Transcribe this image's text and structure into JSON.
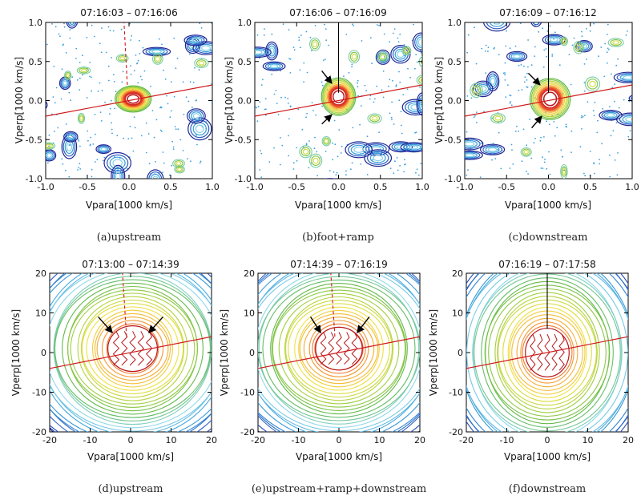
{
  "colors": {
    "contour_scale": [
      "#1a1a8a",
      "#2a58c0",
      "#39a0dc",
      "#8ed8ea",
      "#5cb84a",
      "#a8d140",
      "#f0e040",
      "#f5a030",
      "#e83a2a",
      "#b8171b"
    ],
    "field_line": "#d01818",
    "reference_line": "#000000",
    "arrow": "#000000",
    "frame": "#000000"
  },
  "chart_data": [
    {
      "type": "contour",
      "panel": "a",
      "title": "07:16:03 – 07:16:06",
      "caption": "(a)upstream",
      "xlabel": "Vpara[1000 km/s]",
      "ylabel": "Vperp[1000 km/s]",
      "xlim": [
        -1.0,
        1.0
      ],
      "ylim": [
        -1.0,
        1.0
      ],
      "xticks": [
        "-1.0",
        "-0.5",
        "0.0",
        "0.5",
        "1.0"
      ],
      "yticks": [
        "-1.0",
        "-0.5",
        "0.0",
        "0.5",
        "1.0"
      ],
      "field_line": {
        "x": [
          -1.0,
          1.0
        ],
        "y": [
          -0.2,
          0.2
        ]
      },
      "reference_line": {
        "x": [
          -0.02,
          -0.06
        ],
        "y": [
          0.2,
          1.0
        ],
        "style": "dashed"
      },
      "core": {
        "center": [
          0.05,
          0.02
        ],
        "r": [
          0.18,
          0.14
        ]
      },
      "arrows": []
    },
    {
      "type": "contour",
      "panel": "b",
      "title": "07:16:06 – 07:16:09",
      "caption": "(b)foot+ramp",
      "xlabel": "Vpara[1000 km/s]",
      "ylabel": "Vperp[1000 km/s]",
      "xlim": [
        -1.0,
        1.0
      ],
      "ylim": [
        -1.0,
        1.0
      ],
      "xticks": [
        "-1.0",
        "-0.5",
        "0.0",
        "0.5",
        "1.0"
      ],
      "yticks": [
        "-1.0",
        "-0.5",
        "0.0",
        "0.5",
        "1.0"
      ],
      "field_line": {
        "x": [
          -1.0,
          1.0
        ],
        "y": [
          -0.2,
          0.2
        ]
      },
      "reference_line": {
        "x": [
          0.0,
          0.0
        ],
        "y": [
          0.1,
          1.0
        ],
        "style": "solid"
      },
      "core": {
        "center": [
          0.0,
          0.05
        ],
        "r": [
          0.17,
          0.2
        ]
      },
      "arrows": [
        {
          "from": [
            -0.2,
            0.38
          ],
          "to": [
            -0.08,
            0.22
          ]
        },
        {
          "from": [
            -0.2,
            -0.3
          ],
          "to": [
            -0.08,
            -0.18
          ]
        }
      ]
    },
    {
      "type": "contour",
      "panel": "c",
      "title": "07:16:09 – 07:16:12",
      "caption": "(c)downstream",
      "xlabel": "Vpara[1000 km/s]",
      "ylabel": "Vperp[1000 km/s]",
      "xlim": [
        -1.0,
        1.0
      ],
      "ylim": [
        -1.0,
        1.0
      ],
      "xticks": [
        "-1.0",
        "-0.5",
        "0.0",
        "0.5",
        "1.0"
      ],
      "yticks": [
        "-1.0",
        "-0.5",
        "0.0",
        "0.5",
        "1.0"
      ],
      "field_line": {
        "x": [
          -1.0,
          1.0
        ],
        "y": [
          -0.2,
          0.2
        ]
      },
      "reference_line": {
        "x": [
          0.0,
          0.0
        ],
        "y": [
          0.1,
          1.0
        ],
        "style": "solid"
      },
      "core": {
        "center": [
          0.02,
          0.02
        ],
        "r": [
          0.2,
          0.22
        ]
      },
      "arrows": [
        {
          "from": [
            -0.24,
            0.35
          ],
          "to": [
            -0.1,
            0.2
          ]
        },
        {
          "from": [
            -0.2,
            -0.35
          ],
          "to": [
            -0.08,
            -0.2
          ]
        }
      ]
    },
    {
      "type": "contour",
      "panel": "d",
      "title": "07:13:00 – 07:14:39",
      "caption": "(d)upstream",
      "xlabel": "Vpara[1000 km/s]",
      "ylabel": "Vperp[1000 km/s]",
      "xlim": [
        -20,
        20
      ],
      "ylim": [
        -20,
        20
      ],
      "xticks": [
        "-20",
        "-10",
        "0",
        "10",
        "20"
      ],
      "yticks": [
        "-20",
        "-10",
        "0",
        "10",
        "20"
      ],
      "field_line": {
        "x": [
          -20,
          20
        ],
        "y": [
          -4,
          4
        ]
      },
      "reference_line": {
        "x": [
          -1.0,
          -2.0
        ],
        "y": [
          4,
          20
        ],
        "style": "dashed"
      },
      "core": {
        "center": [
          0.5,
          1.0
        ],
        "r": [
          8.5,
          8.0
        ]
      },
      "arrows": [
        {
          "from": [
            -8,
            9
          ],
          "to": [
            -4.5,
            5
          ]
        },
        {
          "from": [
            8,
            9
          ],
          "to": [
            4.5,
            5
          ]
        }
      ]
    },
    {
      "type": "contour",
      "panel": "e",
      "title": "07:14:39 – 07:16:19",
      "caption": "(e)upstream+ramp+downstream",
      "xlabel": "Vpara[1000 km/s]",
      "ylabel": "Vperp[1000 km/s]",
      "xlim": [
        -20,
        20
      ],
      "ylim": [
        -20,
        20
      ],
      "xticks": [
        "-20",
        "-10",
        "0",
        "10",
        "20"
      ],
      "yticks": [
        "-20",
        "-10",
        "0",
        "10",
        "20"
      ],
      "field_line": {
        "x": [
          -20,
          20
        ],
        "y": [
          -4,
          4
        ]
      },
      "reference_line": {
        "x": [
          -1.0,
          -2.0
        ],
        "y": [
          4,
          20
        ],
        "style": "dashed"
      },
      "core": {
        "center": [
          0.0,
          1.0
        ],
        "r": [
          8.0,
          7.5
        ]
      },
      "arrows": [
        {
          "from": [
            -7,
            9
          ],
          "to": [
            -4.5,
            5
          ]
        },
        {
          "from": [
            7.5,
            9
          ],
          "to": [
            4.5,
            5
          ]
        }
      ]
    },
    {
      "type": "contour",
      "panel": "f",
      "title": "07:16:19 – 07:17:58",
      "caption": "(f)downstream",
      "xlabel": "Vpara[1000 km/s]",
      "ylabel": "Vperp[1000 km/s]",
      "xlim": [
        -20,
        20
      ],
      "ylim": [
        -20,
        20
      ],
      "xticks": [
        "-20",
        "-10",
        "0",
        "10",
        "20"
      ],
      "yticks": [
        "-20",
        "-10",
        "0",
        "10",
        "20"
      ],
      "field_line": {
        "x": [
          -20,
          20
        ],
        "y": [
          -4,
          4
        ]
      },
      "reference_line": {
        "x": [
          0.0,
          0.0
        ],
        "y": [
          6,
          20
        ],
        "style": "solid"
      },
      "core": {
        "center": [
          0.0,
          0.0
        ],
        "r": [
          7.5,
          8.5
        ]
      },
      "arrows": []
    }
  ]
}
